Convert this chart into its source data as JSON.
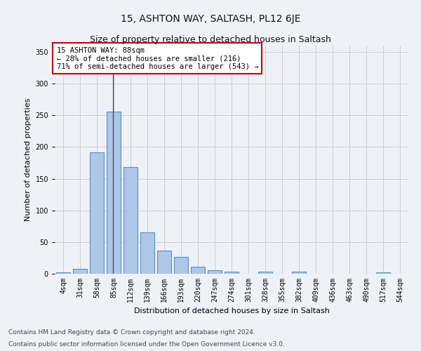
{
  "title": "15, ASHTON WAY, SALTASH, PL12 6JE",
  "subtitle": "Size of property relative to detached houses in Saltash",
  "xlabel": "Distribution of detached houses by size in Saltash",
  "ylabel": "Number of detached properties",
  "footnote1": "Contains HM Land Registry data © Crown copyright and database right 2024.",
  "footnote2": "Contains public sector information licensed under the Open Government Licence v3.0.",
  "bar_labels": [
    "4sqm",
    "31sqm",
    "58sqm",
    "85sqm",
    "112sqm",
    "139sqm",
    "166sqm",
    "193sqm",
    "220sqm",
    "247sqm",
    "274sqm",
    "301sqm",
    "328sqm",
    "355sqm",
    "382sqm",
    "409sqm",
    "436sqm",
    "463sqm",
    "490sqm",
    "517sqm",
    "544sqm"
  ],
  "bar_values": [
    2,
    8,
    192,
    256,
    168,
    65,
    37,
    27,
    11,
    5,
    3,
    0,
    3,
    0,
    3,
    0,
    0,
    0,
    0,
    2,
    0
  ],
  "bar_color": "#aec6e8",
  "bar_edge_color": "#5a8fc0",
  "property_label": "15 ASHTON WAY: 88sqm",
  "annotation_line1": "← 28% of detached houses are smaller (216)",
  "annotation_line2": "71% of semi-detached houses are larger (543) →",
  "vline_bar_index": 3,
  "ylim": [
    0,
    360
  ],
  "yticks": [
    0,
    50,
    100,
    150,
    200,
    250,
    300,
    350
  ],
  "bg_color": "#eef2f8",
  "plot_bg_color": "#eef2f8",
  "annotation_box_color": "#ffffff",
  "annotation_box_edge": "#cc0000",
  "title_fontsize": 10,
  "subtitle_fontsize": 9,
  "label_fontsize": 8,
  "tick_fontsize": 7,
  "footnote_fontsize": 6.5
}
